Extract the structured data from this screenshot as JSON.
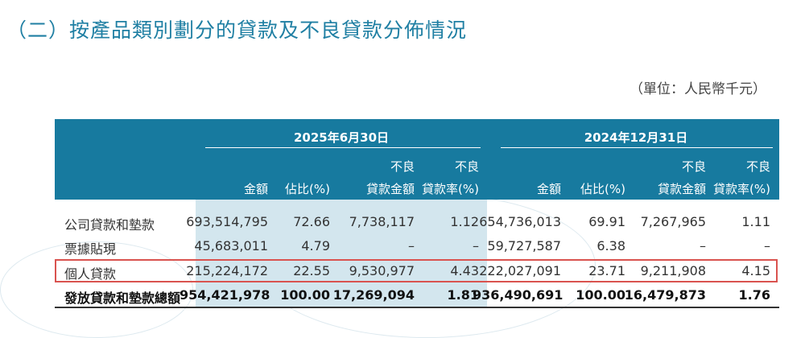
{
  "title": "（二）按產品類別劃分的貸款及不良貸款分佈情況",
  "unit": "（單位：人民幣千元）",
  "groups": [
    "2025年6月30日",
    "2024年12月31日"
  ],
  "columns": [
    {
      "line1": "",
      "line2": "金額"
    },
    {
      "line1": "",
      "line2": "佔比(%)"
    },
    {
      "line1": "不良",
      "line2": "貸款金額"
    },
    {
      "line1": "不良",
      "line2": "貸款率(%)"
    }
  ],
  "rows": [
    {
      "label": "公司貸款和墊款",
      "values": [
        "693,514,795",
        "72.66",
        "7,738,117",
        "1.12",
        "654,736,013",
        "69.91",
        "7,267,965",
        "1.11"
      ]
    },
    {
      "label": "票據貼現",
      "values": [
        "45,683,011",
        "4.79",
        "–",
        "–",
        "59,727,587",
        "6.38",
        "–",
        "–"
      ]
    },
    {
      "label": "個人貸款",
      "values": [
        "215,224,172",
        "22.55",
        "9,530,977",
        "4.43",
        "222,027,091",
        "23.71",
        "9,211,908",
        "4.15"
      ],
      "highlighted": true
    },
    {
      "label": "發放貸款和墊款總額",
      "values": [
        "954,421,978",
        "100.00",
        "17,269,094",
        "1.81",
        "936,490,691",
        "100.00",
        "16,479,873",
        "1.76"
      ],
      "bold": true
    }
  ],
  "colors": {
    "header": "#177a9f",
    "shade": "#d3e6ee",
    "highlight_border": "#d9534f",
    "title": "#1f7fa3"
  }
}
